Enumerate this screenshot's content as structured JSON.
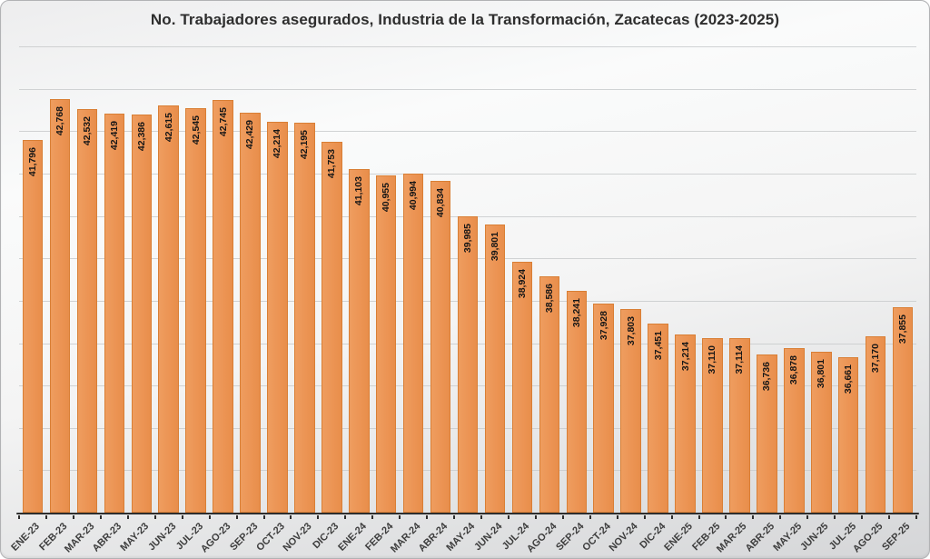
{
  "chart_data": {
    "type": "bar",
    "title": "No. Trabajadores asegurados, Industria de la Transformación, Zacatecas (2023-2025)",
    "xlabel": "",
    "ylabel": "",
    "legend": "none",
    "grid": true,
    "y_axis": {
      "min": 33000,
      "max": 44000,
      "step": 1000,
      "labels_visible": false
    },
    "bar_color": "#EC9454",
    "bar_border_color": "#D97F35",
    "categories": [
      "ENE-23",
      "FEB-23",
      "MAR-23",
      "ABR-23",
      "MAY-23",
      "JUN-23",
      "JUL-23",
      "AGO-23",
      "SEP-23",
      "OCT-23",
      "NOV-23",
      "DIC-23",
      "ENE-24",
      "FEB-24",
      "MAR-24",
      "ABR-24",
      "MAY-24",
      "JUN-24",
      "JUL-24",
      "AGO-24",
      "SEP-24",
      "OCT-24",
      "NOV-24",
      "DIC-24",
      "ENE-25",
      "FEB-25",
      "MAR-25",
      "ABR-25",
      "MAY-25",
      "JUN-25",
      "JUL-25",
      "AGO-25",
      "SEP-25"
    ],
    "values": [
      41796,
      42768,
      42532,
      42419,
      42386,
      42615,
      42545,
      42745,
      42429,
      42214,
      42195,
      41753,
      41103,
      40955,
      40994,
      40834,
      39985,
      39801,
      38924,
      38586,
      38241,
      37928,
      37803,
      37451,
      37214,
      37110,
      37114,
      36736,
      36878,
      36801,
      36661,
      37170,
      37855
    ],
    "value_labels": [
      "41,796",
      "42,768",
      "42,532",
      "42,419",
      "42,386",
      "42,615",
      "42,545",
      "42,745",
      "42,429",
      "42,214",
      "42,195",
      "41,753",
      "41,103",
      "40,955",
      "40,994",
      "40,834",
      "39,985",
      "39,801",
      "38,924",
      "38,586",
      "38,241",
      "37,928",
      "37,803",
      "37,451",
      "37,214",
      "37,110",
      "37,114",
      "36,736",
      "36,878",
      "36,801",
      "36,661",
      "37,170",
      "37,855"
    ]
  }
}
